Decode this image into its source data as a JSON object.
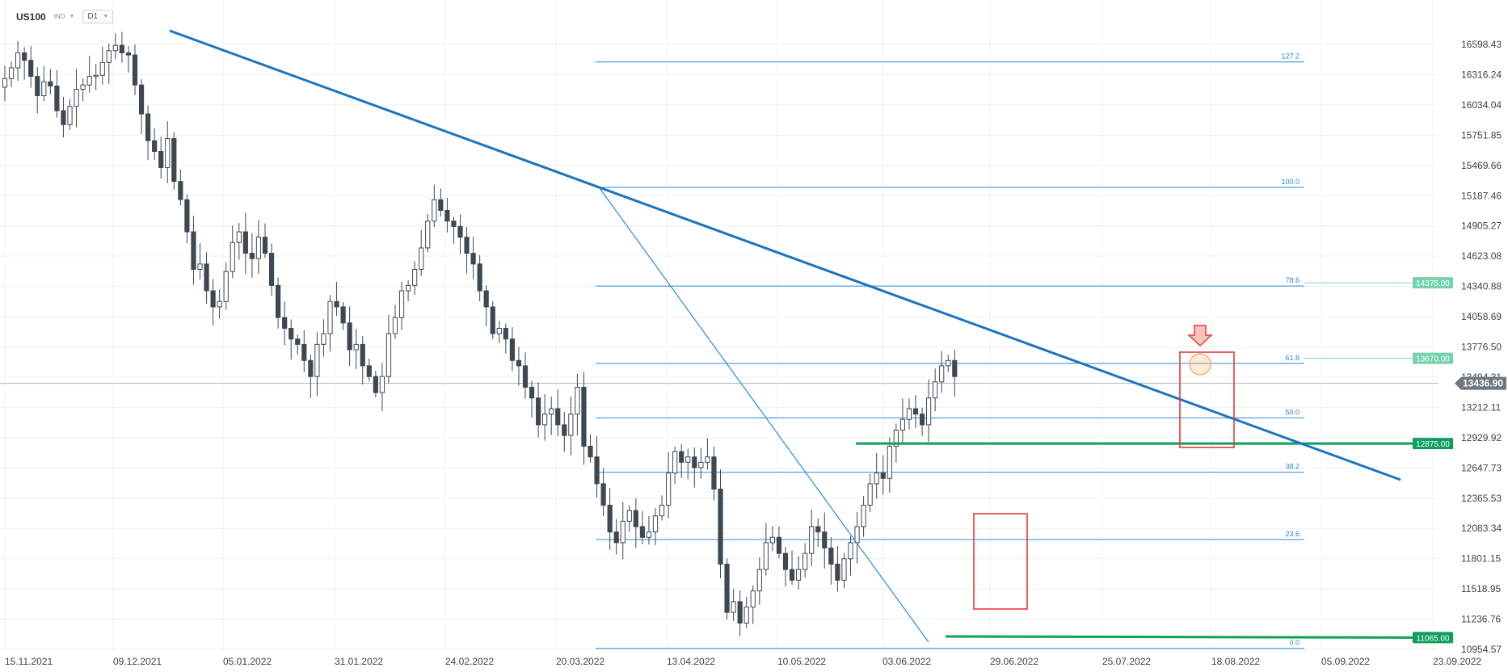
{
  "header": {
    "symbol": "US100",
    "instrument_class": "IND",
    "timeframe": "D1"
  },
  "chart_data": {
    "type": "candlestick",
    "symbol": "US100",
    "timeframe": "D1",
    "ylim": [
      10860,
      16730
    ],
    "y_ticks": [
      16598.43,
      16316.24,
      16034.04,
      15751.85,
      15469.66,
      15187.46,
      14905.27,
      14623.08,
      14340.88,
      14058.69,
      13776.5,
      13494.31,
      13212.11,
      12929.92,
      12647.73,
      12365.53,
      12083.34,
      11801.15,
      11518.95,
      11236.76,
      10954.57
    ],
    "y_tick_labels": [
      "16598.43",
      "16316.24",
      "16034.04",
      "15751.85",
      "15469.66",
      "15187.46",
      "14905.27",
      "14623.08",
      "14340.88",
      "14058.69",
      "13776.50",
      "13494.31",
      "13212.11",
      "12929.92",
      "12647.73",
      "12365.53",
      "12083.34",
      "11801.15",
      "11518.95",
      "11236.76",
      "10954.57"
    ],
    "x_labels": [
      "15.11.2021",
      "09.12.2021",
      "05.01.2022",
      "31.01.2022",
      "24.02.2022",
      "20.03.2022",
      "13.04.2022",
      "10.05.2022",
      "03.06.2022",
      "29.06.2022",
      "25.07.2022",
      "18.08.2022",
      "05.09.2022",
      "23.09.2022"
    ],
    "current_price": 13436.9,
    "current_price_label": "13436.90",
    "closes": [
      16280,
      16380,
      16520,
      16450,
      16300,
      16120,
      16250,
      16210,
      15980,
      15850,
      16020,
      16180,
      16220,
      16300,
      16310,
      16430,
      16540,
      16590,
      16520,
      16500,
      16220,
      15950,
      15700,
      15600,
      15450,
      15720,
      15320,
      15150,
      14850,
      14500,
      14550,
      14300,
      14150,
      14200,
      14480,
      14750,
      14850,
      14650,
      14600,
      14800,
      14650,
      14350,
      14050,
      13950,
      13850,
      13800,
      13650,
      13500,
      13800,
      13900,
      14200,
      14150,
      14000,
      13750,
      13800,
      13600,
      13500,
      13350,
      13500,
      13900,
      14050,
      14300,
      14350,
      14500,
      14700,
      14950,
      15150,
      15050,
      14950,
      14900,
      14800,
      14650,
      14550,
      14300,
      14150,
      13900,
      13950,
      13850,
      13650,
      13600,
      13400,
      13300,
      13050,
      13150,
      13200,
      13050,
      12950,
      13150,
      13400,
      12850,
      12750,
      12500,
      12300,
      12050,
      11950,
      12150,
      12250,
      12100,
      12000,
      12050,
      12200,
      12300,
      12600,
      12800,
      12700,
      12750,
      12650,
      12700,
      12750,
      12450,
      11750,
      11300,
      11400,
      11200,
      11350,
      11500,
      11700,
      11950,
      12000,
      11850,
      11700,
      11600,
      11700,
      11850,
      12100,
      12050,
      11900,
      11750,
      11600,
      11800,
      11950,
      12100,
      12300,
      12500,
      12600,
      12550,
      12850,
      13000,
      13100,
      13200,
      13150,
      13050,
      13300,
      13450,
      13600,
      13650,
      13500
    ],
    "fibonacci": {
      "levels": [
        "127.2",
        "100.0",
        "78.6",
        "61.8",
        "50.0",
        "38.2",
        "23.6",
        "0.0"
      ],
      "ratios": [
        1.272,
        1.0,
        0.786,
        0.618,
        0.5,
        0.382,
        0.236,
        0.0
      ],
      "high": 15265,
      "low": 10964,
      "color": "#2a8ad4"
    },
    "level_labels": [
      "14375.00",
      "13670.00",
      "12875.00",
      "11065.00"
    ],
    "level_values": [
      14375,
      13670,
      12875,
      11065
    ],
    "trendline_color": "#1b75bc",
    "support_color": "#0fa05a",
    "up_color": "#ffffff",
    "down_color": "#3f4852",
    "box_color": "#e23b3b",
    "grid": true,
    "legend": "none"
  }
}
